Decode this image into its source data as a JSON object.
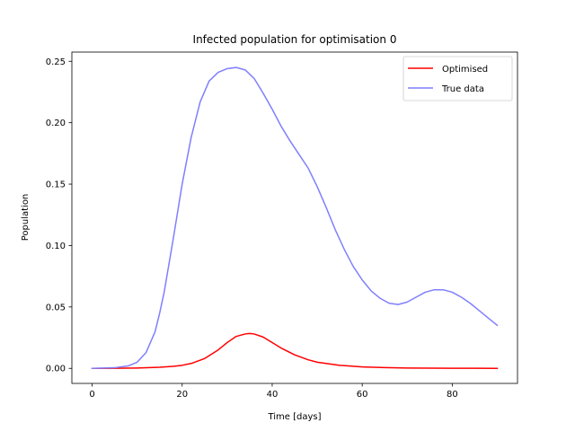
{
  "chart_data": {
    "type": "line",
    "title": "Infected population for optimisation 0",
    "xlabel": "Time [days]",
    "ylabel": "Population",
    "xlim": [
      -4.5,
      94.5
    ],
    "ylim": [
      -0.01225,
      0.2575
    ],
    "xticks": [
      0,
      20,
      40,
      60,
      80
    ],
    "xtick_labels": [
      "0",
      "20",
      "40",
      "60",
      "80"
    ],
    "yticks": [
      0.0,
      0.05,
      0.1,
      0.15,
      0.2,
      0.25
    ],
    "ytick_labels": [
      "0.00",
      "0.05",
      "0.10",
      "0.15",
      "0.20",
      "0.25"
    ],
    "grid": false,
    "legend": "top-right",
    "series": [
      {
        "name": "Optimised",
        "color": "#ff0000",
        "x": [
          0,
          5,
          10,
          15,
          18,
          20,
          22,
          25,
          28,
          30,
          32,
          34,
          35,
          36,
          38,
          40,
          42,
          45,
          48,
          50,
          55,
          60,
          65,
          70,
          75,
          80,
          85,
          90
        ],
        "y": [
          0.0,
          0.0001,
          0.0003,
          0.0009,
          0.0016,
          0.0025,
          0.004,
          0.008,
          0.015,
          0.021,
          0.026,
          0.028,
          0.0284,
          0.028,
          0.0255,
          0.021,
          0.0165,
          0.011,
          0.007,
          0.005,
          0.0025,
          0.0012,
          0.0006,
          0.0003,
          0.0002,
          0.0001,
          0.0001,
          0.0
        ]
      },
      {
        "name": "True data",
        "color": "#7f7fff",
        "x": [
          0,
          5,
          8,
          10,
          12,
          14,
          15,
          16,
          18,
          20,
          22,
          24,
          26,
          28,
          30,
          32,
          34,
          36,
          38,
          40,
          42,
          44,
          46,
          48,
          50,
          52,
          54,
          56,
          58,
          60,
          62,
          64,
          66,
          68,
          70,
          72,
          74,
          76,
          78,
          80,
          82,
          84,
          86,
          88,
          90
        ],
        "y": [
          0.0,
          0.0005,
          0.002,
          0.005,
          0.013,
          0.03,
          0.045,
          0.062,
          0.105,
          0.15,
          0.188,
          0.217,
          0.234,
          0.241,
          0.244,
          0.245,
          0.243,
          0.236,
          0.224,
          0.211,
          0.197,
          0.185,
          0.174,
          0.163,
          0.148,
          0.131,
          0.113,
          0.097,
          0.083,
          0.072,
          0.063,
          0.057,
          0.053,
          0.052,
          0.054,
          0.058,
          0.062,
          0.064,
          0.064,
          0.062,
          0.058,
          0.053,
          0.047,
          0.041,
          0.035
        ]
      }
    ]
  }
}
